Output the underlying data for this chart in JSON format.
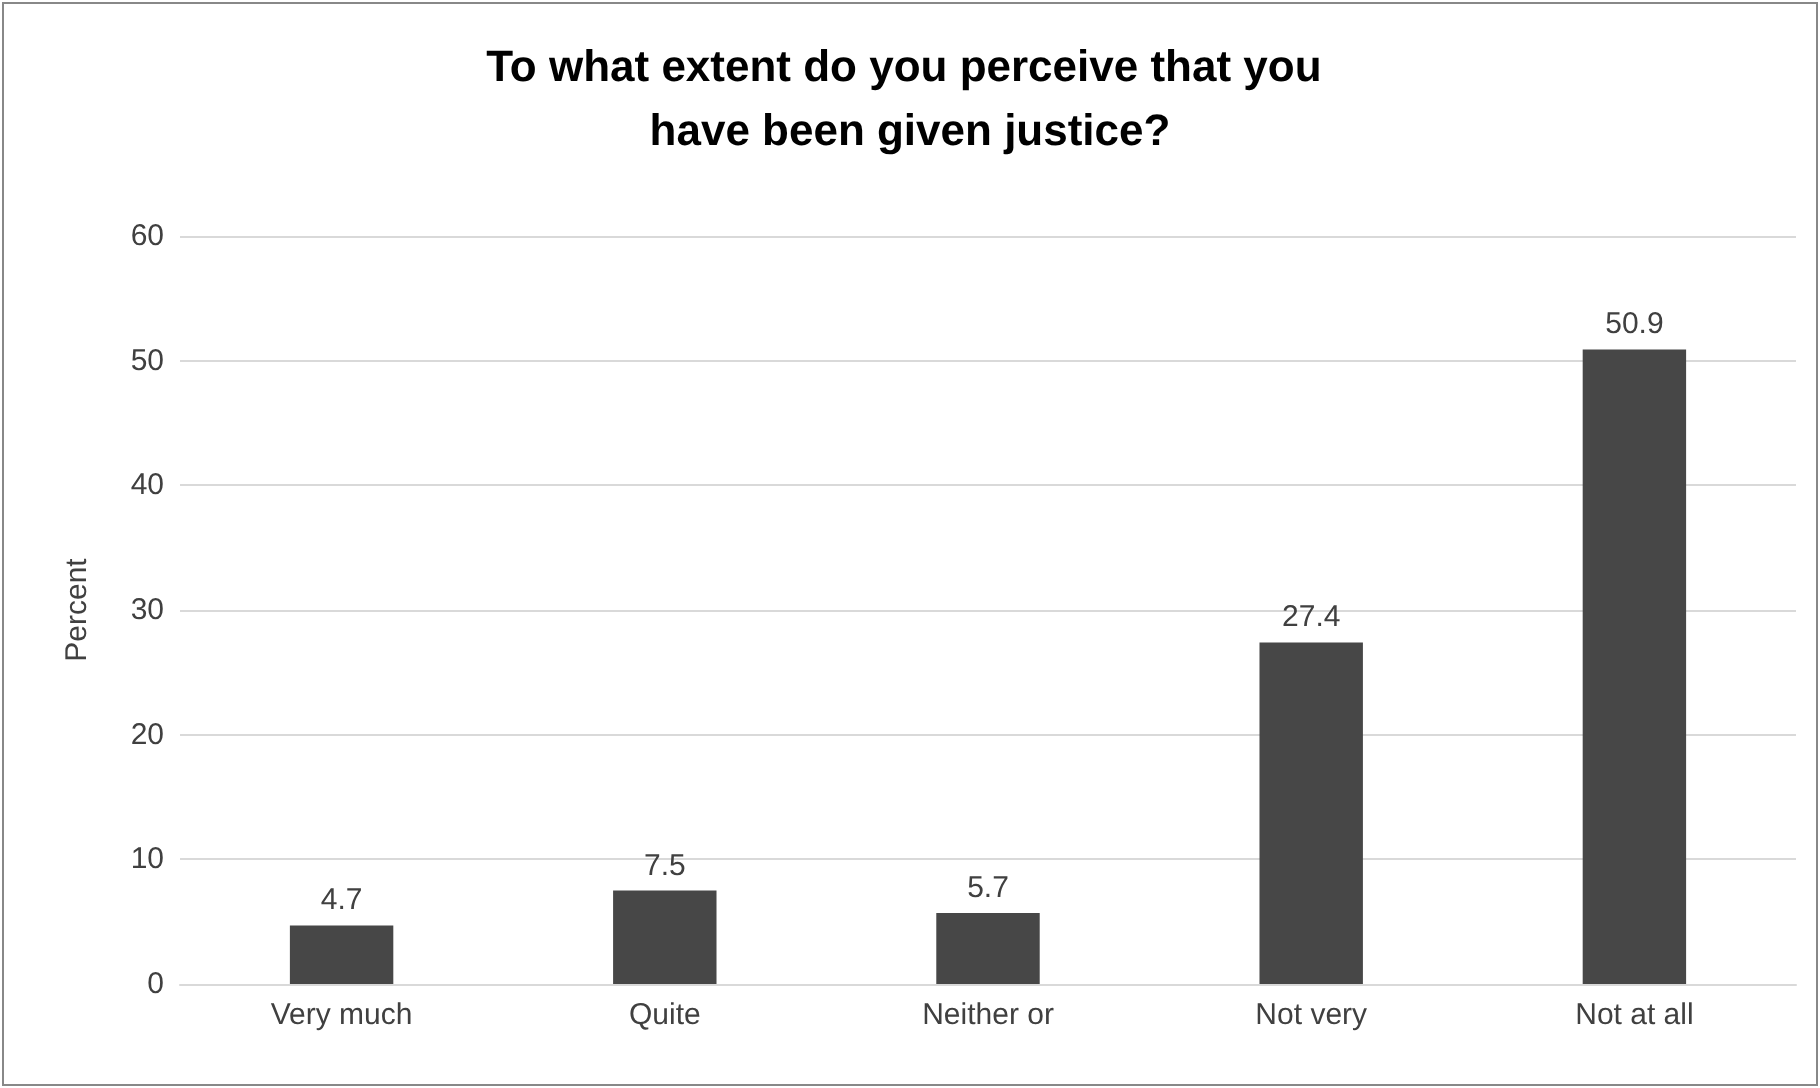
{
  "chart_data": {
    "type": "bar",
    "title": "To what extent do you perceive that you have been given justice?",
    "ylabel": "Percent",
    "categories": [
      "Very much",
      "Quite",
      "Neither or",
      "Not very",
      "Not at all"
    ],
    "values": [
      4.7,
      7.5,
      5.7,
      27.4,
      50.9
    ],
    "color": "#474747",
    "ylim": [
      0,
      60
    ],
    "yticks": [
      0,
      10,
      20,
      30,
      40,
      50,
      60
    ],
    "grid": "y",
    "data_labels": true
  }
}
